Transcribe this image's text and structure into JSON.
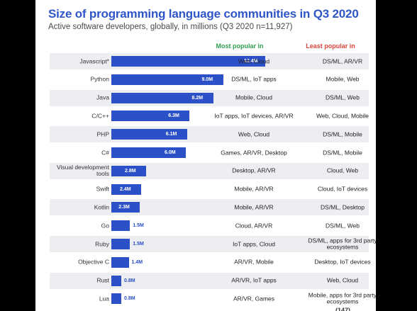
{
  "chart_data": {
    "type": "bar",
    "title": "Size of programming language communities in Q3 2020",
    "subtitle": "Active software developers, globally, in millions (Q3 2020 n=11,927)",
    "col_most": "Most popular in",
    "col_least": "Least popular in",
    "xlim": [
      0,
      12.4
    ],
    "categories": [
      "Javascript*",
      "Python",
      "Java",
      "C/C++",
      "PHP",
      "C#",
      "Visual development tools",
      "Swift",
      "Kotlin",
      "Go",
      "Ruby",
      "Objective C",
      "Rust",
      "Lua"
    ],
    "values": [
      12.4,
      9.0,
      8.2,
      6.3,
      6.1,
      6.0,
      2.8,
      2.4,
      2.3,
      1.5,
      1.5,
      1.4,
      0.8,
      0.8
    ],
    "value_labels": [
      "12.4M",
      "9.0M",
      "8.2M",
      "6.3M",
      "6.1M",
      "6.0M",
      "2.8M",
      "2.4M",
      "2.3M",
      "1.5M",
      "1.5M",
      "1.4M",
      "0.8M",
      "0.8M"
    ],
    "most_popular": [
      "Web, Cloud",
      "DS/ML, IoT apps",
      "Mobile, Cloud",
      "IoT apps, IoT devices, AR/VR",
      "Web, Cloud",
      "Games, AR/VR, Desktop",
      "Desktop, AR/VR",
      "Mobile, AR/VR",
      "Mobile, AR/VR",
      "Cloud, AR/VR",
      "IoT apps, Cloud",
      "AR/VR, Mobile",
      "AR/VR, IoT apps",
      "AR/VR, Games"
    ],
    "least_popular": [
      "DS/ML, AR/VR",
      "Mobile, Web",
      "DS/ML, Web",
      "Web, Cloud, Mobile",
      "DS/ML, Mobile",
      "DS/ML, Mobile",
      "Cloud, Web",
      "Cloud, IoT devices",
      "DS/ML, Desktop",
      "DS/ML, Web",
      "DS/ML, apps for 3rd party ecosystems",
      "Desktop, IoT devices",
      "Web, Cloud",
      "Mobile, apps for 3rd party ecosystems"
    ],
    "colors": {
      "bar": "#2c50c8",
      "title": "#2f56c9",
      "most": "#2e9e4f",
      "least": "#d8423a",
      "row_band": "#eceef2"
    }
  }
}
